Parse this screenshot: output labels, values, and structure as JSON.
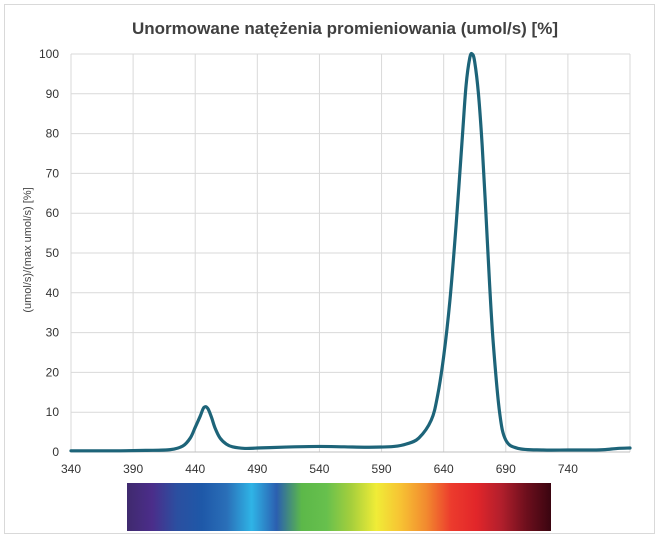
{
  "chart_data": {
    "type": "line",
    "title": "Unormowane natężenia promieniowania (umol/s) [%]",
    "xlabel": "",
    "ylabel": "(umol/s)/(max umol/s) [%]",
    "xlim": [
      340,
      790
    ],
    "ylim": [
      0,
      100
    ],
    "x_ticks": [
      340,
      390,
      440,
      490,
      540,
      590,
      640,
      690,
      740
    ],
    "y_ticks": [
      0,
      10,
      20,
      30,
      40,
      50,
      60,
      70,
      80,
      90,
      100
    ],
    "grid": true,
    "legend": "none",
    "series": [
      {
        "color": "#1d6479",
        "x": [
          340,
          360,
          380,
          400,
          420,
          430,
          436,
          440,
          444,
          447,
          450,
          453,
          456,
          460,
          465,
          470,
          480,
          490,
          500,
          520,
          540,
          560,
          580,
          600,
          610,
          620,
          630,
          635,
          640,
          645,
          650,
          655,
          658,
          661,
          663,
          665,
          668,
          671,
          674,
          677,
          680,
          685,
          690,
          700,
          720,
          740,
          760,
          770,
          780,
          790
        ],
        "y": [
          0.3,
          0.3,
          0.3,
          0.4,
          0.6,
          1.5,
          3.5,
          6.2,
          9.0,
          11.2,
          11.0,
          8.8,
          6.0,
          3.5,
          2.0,
          1.3,
          0.9,
          1.0,
          1.1,
          1.3,
          1.4,
          1.3,
          1.2,
          1.4,
          2.0,
          3.5,
          8.0,
          14.0,
          24.0,
          38.0,
          57.0,
          79.0,
          92.0,
          99.0,
          100.0,
          98.0,
          90.0,
          77.0,
          60.0,
          42.0,
          27.0,
          10.0,
          3.0,
          0.9,
          0.5,
          0.5,
          0.5,
          0.6,
          0.9,
          1.0
        ]
      }
    ]
  },
  "spectrum_bar": {
    "colors": [
      "#3f2a6e",
      "#4b2d8a",
      "#2b4fa0",
      "#1e58a8",
      "#2a6fb8",
      "#2fb4e6",
      "#2b5fb0",
      "#5cb849",
      "#67c04d",
      "#a6cf3c",
      "#f0ec37",
      "#f7c133",
      "#f28a2f",
      "#ec3b2d",
      "#e2262a",
      "#b21f2c",
      "#6e0f1d",
      "#3a0510"
    ]
  }
}
